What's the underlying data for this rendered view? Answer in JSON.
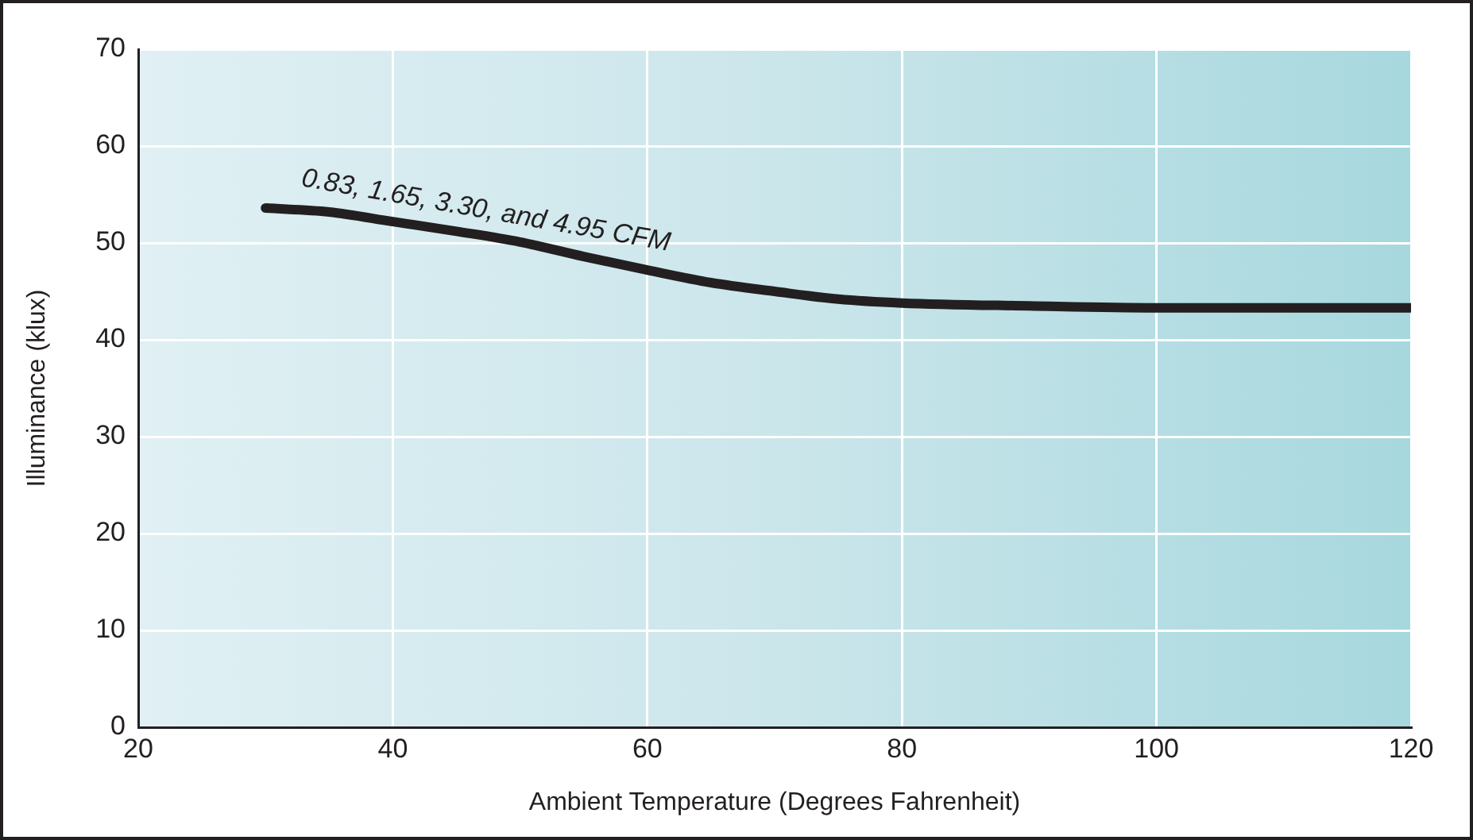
{
  "chart_data": {
    "type": "line",
    "xlabel": "Ambient Temperature (Degrees Fahrenheit)",
    "ylabel": "Illuminance (klux)",
    "x": [
      30,
      35,
      40,
      45,
      50,
      55,
      60,
      65,
      70,
      75,
      80,
      90,
      100,
      110,
      120
    ],
    "series": [
      {
        "name": "0.83, 1.65, 3.30, and 4.95 CFM",
        "color": "#231f20",
        "values": [
          53.6,
          53.2,
          52.2,
          51.2,
          50.1,
          48.6,
          47.2,
          45.9,
          45.0,
          44.2,
          43.8,
          43.5,
          43.3,
          43.3,
          43.3
        ]
      }
    ],
    "xlim": [
      20,
      120
    ],
    "xticks": [
      20,
      40,
      60,
      80,
      100,
      120
    ],
    "ylim": [
      0,
      70
    ],
    "yticks": [
      0,
      10,
      20,
      30,
      40,
      50,
      60,
      70
    ],
    "grid": true,
    "legend": false,
    "marker": "none",
    "line_style": "solid"
  }
}
